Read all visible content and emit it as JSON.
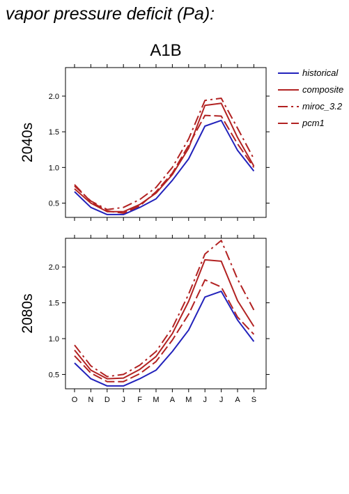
{
  "title": "vapor pressure deficit (Pa):",
  "chart_data": {
    "type": "line",
    "panel_title": "A1B",
    "categories": [
      "O",
      "N",
      "D",
      "J",
      "F",
      "M",
      "A",
      "M",
      "J",
      "J",
      "A",
      "S"
    ],
    "ylim": [
      0.3,
      2.4
    ],
    "yticks": [
      0.5,
      1.0,
      1.5,
      2.0
    ],
    "ytick_labels": [
      "0.5",
      "1.0",
      "1.5",
      "2.0"
    ],
    "grid": false,
    "legend_position": "right",
    "legend": [
      {
        "label": "historical",
        "color": "#2222bb",
        "dash": "solid"
      },
      {
        "label": "composite",
        "color": "#b22222",
        "dash": "solid"
      },
      {
        "label": "miroc_3.2",
        "color": "#b22222",
        "dash": "dashdot"
      },
      {
        "label": "pcm1",
        "color": "#b22222",
        "dash": "dashed"
      }
    ],
    "panels": [
      {
        "row_label": "2040s",
        "series": [
          {
            "name": "historical",
            "values": [
              0.66,
              0.44,
              0.34,
              0.34,
              0.44,
              0.56,
              0.82,
              1.12,
              1.58,
              1.66,
              1.24,
              0.95
            ]
          },
          {
            "name": "composite",
            "values": [
              0.7,
              0.5,
              0.38,
              0.38,
              0.48,
              0.64,
              0.9,
              1.27,
              1.87,
              1.9,
              1.42,
              1.02
            ]
          },
          {
            "name": "miroc_3.2",
            "values": [
              0.74,
              0.53,
              0.41,
              0.44,
              0.55,
              0.72,
              1.0,
              1.4,
              1.94,
              1.97,
              1.55,
              1.12
            ]
          },
          {
            "name": "pcm1",
            "values": [
              0.76,
              0.52,
              0.39,
              0.36,
              0.46,
              0.66,
              0.92,
              1.31,
              1.73,
              1.72,
              1.33,
              1.0
            ]
          }
        ]
      },
      {
        "row_label": "2080s",
        "series": [
          {
            "name": "historical",
            "values": [
              0.66,
              0.44,
              0.34,
              0.34,
              0.44,
              0.56,
              0.82,
              1.12,
              1.58,
              1.66,
              1.26,
              0.96
            ]
          },
          {
            "name": "composite",
            "values": [
              0.84,
              0.56,
              0.44,
              0.45,
              0.57,
              0.75,
              1.07,
              1.52,
              2.1,
              2.08,
              1.53,
              1.17
            ]
          },
          {
            "name": "miroc_3.2",
            "values": [
              0.91,
              0.62,
              0.47,
              0.5,
              0.63,
              0.82,
              1.15,
              1.62,
              2.18,
              2.37,
              1.83,
              1.4
            ]
          },
          {
            "name": "pcm1",
            "values": [
              0.76,
              0.52,
              0.4,
              0.4,
              0.51,
              0.68,
              0.98,
              1.34,
              1.82,
              1.72,
              1.3,
              1.06
            ]
          }
        ]
      }
    ]
  }
}
